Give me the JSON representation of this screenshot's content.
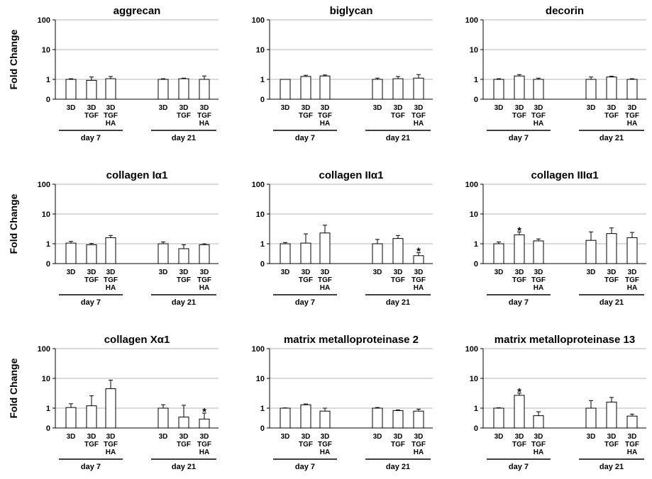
{
  "figure": {
    "ylabel": "Fold Change",
    "yticks": [
      "0",
      "1",
      "10",
      "100"
    ],
    "categories": [
      [
        "3D"
      ],
      [
        "3D",
        "TGF"
      ],
      [
        "3D",
        "TGF",
        "HA"
      ]
    ],
    "groups": [
      "day 7",
      "day 21"
    ]
  },
  "chart_data": [
    {
      "type": "bar",
      "title": "aggrecan",
      "ylabel": "Fold Change",
      "yscale": "log",
      "ylim": [
        0,
        100
      ],
      "groups": [
        "day 7",
        "day 21"
      ],
      "categories": [
        "3D",
        "3D TGF",
        "3D TGF HA"
      ],
      "values": [
        [
          1.0,
          0.95,
          1.05
        ],
        [
          1.0,
          1.05,
          1.0
        ]
      ],
      "errors": [
        [
          0.05,
          0.25,
          0.2
        ],
        [
          0.05,
          0.05,
          0.3
        ]
      ],
      "significant": [
        [
          false,
          false,
          false
        ],
        [
          false,
          false,
          false
        ]
      ]
    },
    {
      "type": "bar",
      "title": "biglycan",
      "ylabel": "",
      "yscale": "log",
      "ylim": [
        0,
        100
      ],
      "groups": [
        "day 7",
        "day 21"
      ],
      "categories": [
        "3D",
        "3D TGF",
        "3D TGF HA"
      ],
      "values": [
        [
          1.0,
          1.25,
          1.3
        ],
        [
          1.0,
          1.05,
          1.1
        ]
      ],
      "errors": [
        [
          0.0,
          0.12,
          0.1
        ],
        [
          0.1,
          0.2,
          0.35
        ]
      ],
      "significant": [
        [
          false,
          false,
          false
        ],
        [
          false,
          false,
          false
        ]
      ]
    },
    {
      "type": "bar",
      "title": "decorin",
      "ylabel": "",
      "yscale": "log",
      "ylim": [
        0,
        100
      ],
      "groups": [
        "day 7",
        "day 21"
      ],
      "categories": [
        "3D",
        "3D TGF",
        "3D TGF HA"
      ],
      "values": [
        [
          1.0,
          1.3,
          1.0
        ],
        [
          1.0,
          1.2,
          1.0
        ]
      ],
      "errors": [
        [
          0.05,
          0.15,
          0.1
        ],
        [
          0.2,
          0.08,
          0.05
        ]
      ],
      "significant": [
        [
          false,
          false,
          false
        ],
        [
          false,
          false,
          false
        ]
      ]
    },
    {
      "type": "bar",
      "title": "collagen Iα1",
      "ylabel": "Fold Change",
      "yscale": "log",
      "ylim": [
        0,
        100
      ],
      "groups": [
        "day 7",
        "day 21"
      ],
      "categories": [
        "3D",
        "3D TGF",
        "3D TGF HA"
      ],
      "values": [
        [
          1.05,
          0.95,
          1.6
        ],
        [
          1.0,
          0.75,
          0.95
        ]
      ],
      "errors": [
        [
          0.15,
          0.08,
          0.3
        ],
        [
          0.15,
          0.2,
          0.05
        ]
      ],
      "significant": [
        [
          false,
          false,
          false
        ],
        [
          false,
          false,
          false
        ]
      ]
    },
    {
      "type": "bar",
      "title": "collagen IIα1",
      "ylabel": "",
      "yscale": "log",
      "ylim": [
        0,
        100
      ],
      "groups": [
        "day 7",
        "day 21"
      ],
      "categories": [
        "3D",
        "3D TGF",
        "3D TGF HA"
      ],
      "values": [
        [
          1.0,
          1.05,
          2.3
        ],
        [
          1.0,
          1.5,
          0.4
        ]
      ],
      "errors": [
        [
          0.1,
          1.1,
          1.9
        ],
        [
          0.4,
          0.4,
          0.15
        ]
      ],
      "significant": [
        [
          false,
          false,
          false
        ],
        [
          false,
          false,
          true
        ]
      ]
    },
    {
      "type": "bar",
      "title": "collagen IIIα1",
      "ylabel": "",
      "yscale": "log",
      "ylim": [
        0,
        100
      ],
      "groups": [
        "day 7",
        "day 21"
      ],
      "categories": [
        "3D",
        "3D TGF",
        "3D TGF HA"
      ],
      "values": [
        [
          1.0,
          2.0,
          1.25
        ],
        [
          1.3,
          2.2,
          1.6
        ]
      ],
      "errors": [
        [
          0.15,
          0.5,
          0.2
        ],
        [
          1.2,
          1.2,
          0.8
        ]
      ],
      "significant": [
        [
          false,
          true,
          false
        ],
        [
          false,
          false,
          false
        ]
      ]
    },
    {
      "type": "bar",
      "title": "collagen Xα1",
      "ylabel": "Fold Change",
      "yscale": "log",
      "ylim": [
        0,
        100
      ],
      "groups": [
        "day 7",
        "day 21"
      ],
      "categories": [
        "3D",
        "3D TGF",
        "3D TGF HA"
      ],
      "values": [
        [
          1.05,
          1.2,
          4.5
        ],
        [
          1.0,
          0.55,
          0.45
        ]
      ],
      "errors": [
        [
          0.35,
          1.4,
          4.2
        ],
        [
          0.3,
          0.7,
          0.3
        ]
      ],
      "significant": [
        [
          false,
          false,
          false
        ],
        [
          false,
          false,
          true
        ]
      ]
    },
    {
      "type": "bar",
      "title": "matrix metalloproteinase 2",
      "ylabel": "",
      "yscale": "log",
      "ylim": [
        0,
        100
      ],
      "groups": [
        "day 7",
        "day 21"
      ],
      "categories": [
        "3D",
        "3D TGF",
        "3D TGF HA"
      ],
      "values": [
        [
          1.0,
          1.3,
          0.85
        ],
        [
          1.0,
          0.88,
          0.85
        ]
      ],
      "errors": [
        [
          0.02,
          0.08,
          0.15
        ],
        [
          0.05,
          0.03,
          0.1
        ]
      ],
      "significant": [
        [
          false,
          false,
          false
        ],
        [
          false,
          false,
          false
        ]
      ]
    },
    {
      "type": "bar",
      "title": "matrix metalloproteinase 13",
      "ylabel": "",
      "yscale": "log",
      "ylim": [
        0,
        100
      ],
      "groups": [
        "day 7",
        "day 21"
      ],
      "categories": [
        "3D",
        "3D TGF",
        "3D TGF HA"
      ],
      "values": [
        [
          1.0,
          2.7,
          0.62
        ],
        [
          1.0,
          1.6,
          0.6
        ]
      ],
      "errors": [
        [
          0.03,
          0.5,
          0.2
        ],
        [
          0.8,
          0.7,
          0.1
        ]
      ],
      "significant": [
        [
          false,
          true,
          false
        ],
        [
          false,
          false,
          false
        ]
      ]
    }
  ]
}
